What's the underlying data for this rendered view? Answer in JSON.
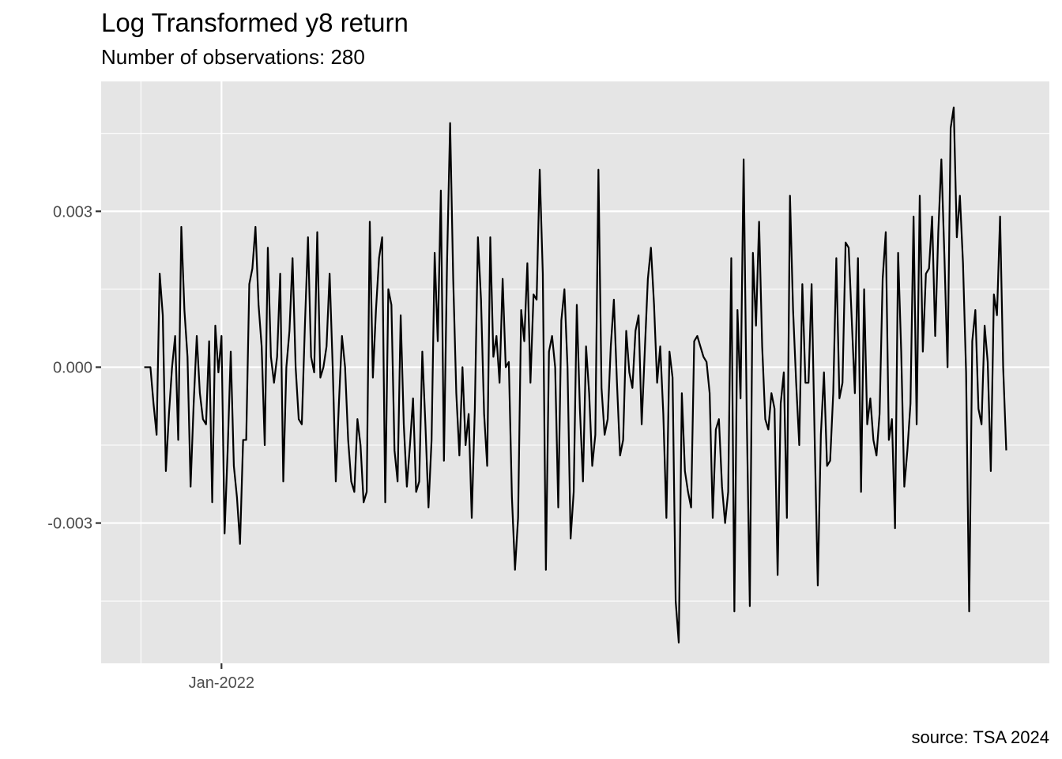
{
  "chart_data": {
    "type": "line",
    "title": "Log Transformed y8 return",
    "subtitle": "Number of observations: 280",
    "caption": "source: TSA 2024",
    "xlabel": "",
    "ylabel": "",
    "x_tick_labels": [
      "Jan-2022"
    ],
    "y_ticks": [
      {
        "value": 0.003,
        "label": "0.003"
      },
      {
        "value": 0.0,
        "label": "0.000"
      },
      {
        "value": -0.003,
        "label": "-0.003"
      }
    ],
    "ylim": [
      -0.0057,
      0.0055
    ],
    "grid": true,
    "panel_color": "#e5e5e5",
    "grid_color": "#ffffff",
    "line_color": "#000000",
    "x_start": "2021-07-10",
    "n": 280,
    "values": [
      0.0,
      0.0,
      0.0,
      -0.0007,
      -0.0013,
      0.0018,
      0.001,
      -0.002,
      -0.0009,
      0.0,
      0.0006,
      -0.0014,
      0.0027,
      0.0011,
      0.0002,
      -0.0023,
      -0.0007,
      0.0006,
      -0.0005,
      -0.001,
      -0.0011,
      0.0005,
      -0.0026,
      0.0008,
      -0.0001,
      0.0006,
      -0.0032,
      -0.0016,
      0.0003,
      -0.0019,
      -0.0025,
      -0.0034,
      -0.0014,
      -0.0014,
      0.0016,
      0.0019,
      0.0027,
      0.0012,
      0.0004,
      -0.0015,
      0.0023,
      0.0002,
      -0.0003,
      0.0002,
      0.0018,
      -0.0022,
      0.0,
      0.0007,
      0.0021,
      0.0,
      -0.001,
      -0.0011,
      0.0008,
      0.0025,
      0.0002,
      -0.0001,
      0.0026,
      -0.0002,
      0.0,
      0.0004,
      0.0018,
      0.0,
      -0.0022,
      -0.0007,
      0.0006,
      0.0,
      -0.0014,
      -0.0022,
      -0.0024,
      -0.001,
      -0.0015,
      -0.0026,
      -0.0024,
      0.0028,
      -0.0002,
      0.0011,
      0.0021,
      0.0025,
      -0.0026,
      0.0015,
      0.0012,
      -0.0016,
      -0.0022,
      0.001,
      -0.0011,
      -0.0023,
      -0.0015,
      -0.0006,
      -0.0024,
      -0.0022,
      0.0003,
      -0.0011,
      -0.0027,
      -0.0014,
      0.0022,
      0.0005,
      0.0034,
      -0.0018,
      0.002,
      0.0047,
      0.0017,
      -0.0005,
      -0.0017,
      0.0,
      -0.0015,
      -0.0009,
      -0.0029,
      -0.0008,
      0.0025,
      0.0013,
      -0.0009,
      -0.0019,
      0.0025,
      0.0002,
      0.0006,
      -0.0003,
      0.0017,
      0.0,
      0.0001,
      -0.0025,
      -0.0039,
      -0.0029,
      0.0011,
      0.0005,
      0.002,
      -0.0003,
      0.0014,
      0.0013,
      0.0038,
      0.0018,
      -0.0039,
      0.0003,
      0.0006,
      0.0,
      -0.0027,
      0.0009,
      0.0015,
      0.0,
      -0.0033,
      -0.0024,
      0.0012,
      -0.0008,
      -0.0022,
      0.0004,
      -0.0005,
      -0.0019,
      -0.0013,
      0.0038,
      -0.0004,
      -0.0013,
      -0.001,
      0.0004,
      0.0013,
      -0.0003,
      -0.0017,
      -0.0014,
      0.0007,
      -0.0001,
      -0.0004,
      0.0007,
      0.001,
      -0.0011,
      0.0003,
      0.0017,
      0.0023,
      0.0012,
      -0.0003,
      0.0004,
      -0.0009,
      -0.0029,
      0.0003,
      -0.0002,
      -0.0045,
      -0.0053,
      -0.0005,
      -0.002,
      -0.0024,
      -0.0027,
      0.0005,
      0.0006,
      0.0004,
      0.0002,
      0.0001,
      -0.0005,
      -0.0029,
      -0.0012,
      -0.001,
      -0.0023,
      -0.003,
      -0.0024,
      0.0021,
      -0.0047,
      0.0011,
      -0.0006,
      0.004,
      -0.0009,
      -0.0046,
      0.0022,
      0.0008,
      0.0028,
      0.0004,
      -0.001,
      -0.0012,
      -0.0005,
      -0.0008,
      -0.004,
      -0.0007,
      -0.0001,
      -0.0029,
      0.0033,
      0.0011,
      -0.0003,
      -0.0015,
      0.0016,
      -0.0003,
      -0.0003,
      0.0016,
      -0.0014,
      -0.0042,
      -0.0013,
      -0.0001,
      -0.0019,
      -0.0018,
      -0.0005,
      0.0021,
      -0.0006,
      -0.0003,
      0.0024,
      0.0023,
      0.0009,
      -0.0005,
      0.0021,
      -0.0024,
      0.0015,
      -0.0011,
      -0.0006,
      -0.0014,
      -0.0017,
      -0.0009,
      0.0017,
      0.0026,
      -0.0014,
      -0.001,
      -0.0031,
      0.0022,
      0.0003,
      -0.0023,
      -0.0016,
      -0.0007,
      0.0029,
      -0.0011,
      0.0033,
      0.0003,
      0.0018,
      0.0019,
      0.0029,
      0.0006,
      0.0026,
      0.004,
      0.0021,
      0.0,
      0.0046,
      0.005,
      0.0025,
      0.0033,
      0.002,
      -0.0001,
      -0.0047,
      0.0005,
      0.0011,
      -0.0008,
      -0.0011,
      0.0008,
      0.0001,
      -0.002,
      0.0014,
      0.001,
      0.0029,
      0.0,
      -0.0016
    ]
  }
}
